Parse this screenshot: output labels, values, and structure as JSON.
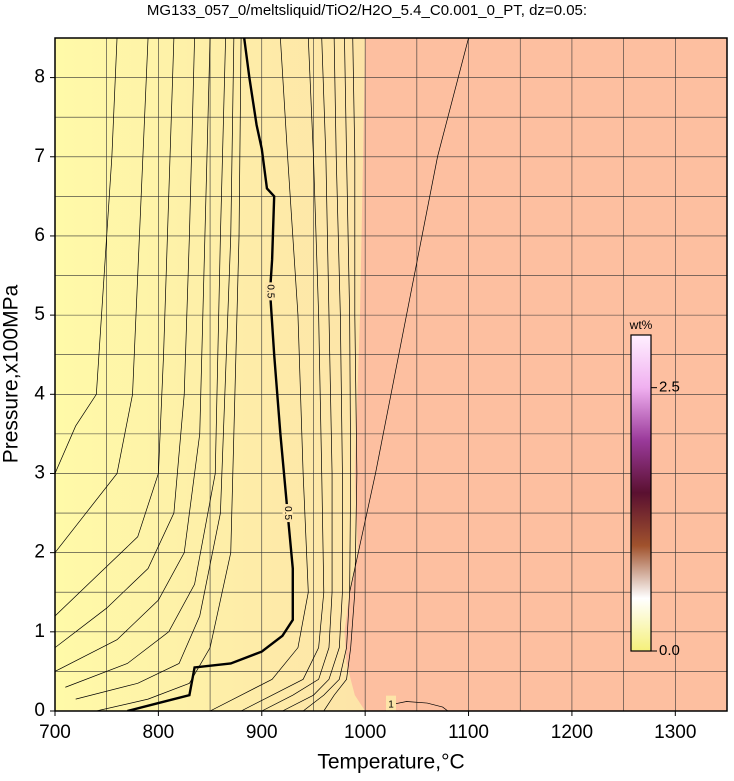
{
  "chart_data": {
    "type": "contour",
    "title": "MG133_057_0/meltsliquid/TiO2/H2O_5.4_C0.001_0_PT, dz=0.05:",
    "xlabel": "Temperature,°C",
    "ylabel": "Pressure,x100MPa",
    "xlim": [
      700,
      1350
    ],
    "ylim": [
      0,
      8.5
    ],
    "xticks": [
      700,
      800,
      900,
      1000,
      1100,
      1200,
      1300
    ],
    "yticks": [
      0,
      1,
      2,
      3,
      4,
      5,
      6,
      7,
      8
    ],
    "xgrid": [
      750,
      800,
      850,
      900,
      950,
      1000,
      1050,
      1100,
      1150,
      1200,
      1250,
      1300
    ],
    "ygrid": [
      0.5,
      1,
      1.5,
      2,
      2.5,
      3,
      3.5,
      4,
      4.5,
      5,
      5.5,
      6,
      6.5,
      7,
      7.5,
      8
    ],
    "field_colors": [
      "#fffaa8",
      "#fde4a8",
      "#fdbfa0"
    ],
    "field_boundary": {
      "x": [
        1000,
        998,
        995,
        990,
        993,
        985,
        980,
        982,
        990,
        1000
      ],
      "y": [
        8.5,
        7,
        5,
        3,
        2,
        1.5,
        1,
        0.6,
        0.2,
        0
      ]
    },
    "contours": [
      {
        "level": 0.05,
        "x": [
          700,
          720,
          740,
          745,
          750,
          755,
          760
        ],
        "y": [
          3.0,
          3.6,
          4.0,
          5,
          6,
          7,
          8.5
        ]
      },
      {
        "level": 0.1,
        "x": [
          700,
          730,
          760,
          775,
          780,
          785,
          790
        ],
        "y": [
          2.0,
          2.5,
          3.0,
          4.0,
          5.5,
          7,
          8.5
        ]
      },
      {
        "level": 0.15,
        "x": [
          700,
          740,
          780,
          800,
          805,
          810,
          815
        ],
        "y": [
          1.2,
          1.7,
          2.2,
          3.0,
          4.5,
          6.5,
          8.5
        ]
      },
      {
        "level": 0.2,
        "x": [
          700,
          750,
          790,
          815,
          825,
          830,
          835
        ],
        "y": [
          0.8,
          1.3,
          1.8,
          2.5,
          4,
          6,
          8.5
        ]
      },
      {
        "level": 0.25,
        "x": [
          700,
          760,
          800,
          825,
          840,
          845,
          850
        ],
        "y": [
          0.5,
          0.9,
          1.4,
          2.0,
          3.5,
          6,
          8.5
        ]
      },
      {
        "level": 0.3,
        "x": [
          710,
          770,
          810,
          835,
          855,
          860,
          865
        ],
        "y": [
          0.3,
          0.6,
          1.0,
          1.6,
          3,
          6,
          8.5
        ]
      },
      {
        "level": 0.35,
        "x": [
          720,
          780,
          820,
          840,
          860,
          870,
          873
        ],
        "y": [
          0.15,
          0.35,
          0.6,
          1.2,
          2.5,
          6,
          8.5
        ]
      },
      {
        "level": 0.4,
        "x": [
          740,
          790,
          830,
          850,
          870,
          878,
          880
        ],
        "y": [
          0,
          0.15,
          0.35,
          0.8,
          2,
          6,
          8.5
        ]
      },
      {
        "level": 0.5,
        "x": [
          770,
          800,
          830,
          835,
          870,
          900,
          920,
          930,
          930,
          925,
          918,
          912,
          908,
          910,
          912,
          905,
          900,
          895,
          888,
          883
        ],
        "y": [
          0,
          0.1,
          0.2,
          0.55,
          0.6,
          0.75,
          0.95,
          1.15,
          1.8,
          2.5,
          3.5,
          4.5,
          5.3,
          5.7,
          6.5,
          6.6,
          7.1,
          7.4,
          8,
          8.5
        ]
      },
      {
        "level": 0.6,
        "x": [
          850,
          880,
          910,
          935,
          945,
          940,
          935,
          925,
          918
        ],
        "y": [
          0,
          0.2,
          0.4,
          0.8,
          1.5,
          3,
          5,
          7,
          8.5
        ]
      },
      {
        "level": 0.65,
        "x": [
          880,
          910,
          940,
          955,
          960,
          958,
          955,
          950,
          945
        ],
        "y": [
          0,
          0.2,
          0.4,
          0.8,
          1.5,
          3,
          5,
          7,
          8.5
        ]
      },
      {
        "level": 0.7,
        "x": [
          900,
          930,
          955,
          965,
          968,
          968,
          965,
          962,
          958
        ],
        "y": [
          0,
          0.2,
          0.4,
          0.8,
          1.5,
          3,
          5,
          7,
          8.5
        ]
      },
      {
        "level": 0.75,
        "x": [
          920,
          950,
          965,
          975,
          978,
          978,
          976,
          972,
          970
        ],
        "y": [
          0,
          0.2,
          0.4,
          0.8,
          1.5,
          3,
          5,
          7,
          8.5
        ]
      },
      {
        "level": 0.8,
        "x": [
          940,
          960,
          975,
          982,
          985,
          986,
          985,
          982,
          980
        ],
        "y": [
          0,
          0.2,
          0.4,
          0.8,
          1.5,
          3,
          5,
          7,
          8.5
        ]
      },
      {
        "level": 0.9,
        "x": [
          960,
          970,
          982,
          986,
          990,
          992,
          990,
          990,
          988
        ],
        "y": [
          0,
          0.2,
          0.4,
          0.8,
          1.5,
          3,
          5,
          7,
          8.5
        ]
      },
      {
        "level": 1,
        "x": [
          1020,
          1025,
          1040,
          1060,
          1075,
          1080
        ],
        "y": [
          0,
          0.08,
          0.12,
          0.1,
          0.05,
          0
        ]
      },
      {
        "level": 1,
        "x": [
          985,
          1010,
          1040,
          1070,
          1100
        ],
        "y": [
          1.5,
          3,
          5,
          7,
          8.5
        ]
      }
    ],
    "colorbar": {
      "label": "wt%",
      "lim": [
        0,
        3
      ],
      "ticks": [
        {
          "value": 0,
          "label": "0.0"
        },
        {
          "value": 2.5,
          "label": "2.5"
        }
      ],
      "colors": [
        "#f5f07a",
        "#ffffff",
        "#a0522d",
        "#5a1030",
        "#9a3a9a",
        "#f0b0f0",
        "#fff0ff"
      ]
    }
  }
}
